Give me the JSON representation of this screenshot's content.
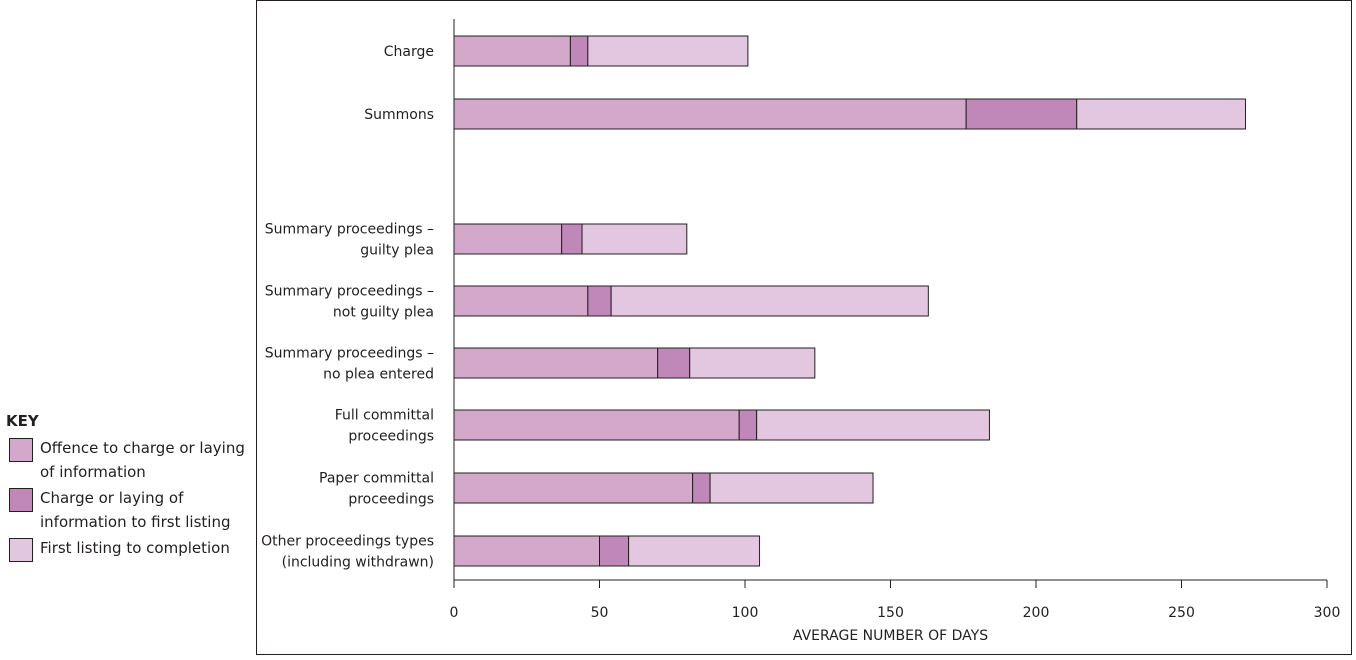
{
  "key": {
    "title": "KEY",
    "items": [
      {
        "label": "Offence to charge or laying of information",
        "color": "#d3a8cb"
      },
      {
        "label": "Charge or laying of information to first listing",
        "color": "#c088b8"
      },
      {
        "label": "First listing to completion",
        "color": "#e3c6df"
      }
    ]
  },
  "chart_data": {
    "type": "bar",
    "orientation": "horizontal",
    "stacked": true,
    "categories": [
      [
        "Charge"
      ],
      [
        "Summons"
      ],
      [
        "Summary proceedings –",
        "guilty plea"
      ],
      [
        "Summary proceedings –",
        "not guilty plea"
      ],
      [
        "Summary proceedings –",
        "no plea entered"
      ],
      [
        "Full committal",
        "proceedings"
      ],
      [
        "Paper committal",
        "proceedings"
      ],
      [
        "Other proceedings types",
        "(including withdrawn)"
      ]
    ],
    "series": [
      {
        "name": "Offence to charge or laying of information",
        "values": [
          40,
          176,
          37,
          46,
          70,
          98,
          82,
          50
        ]
      },
      {
        "name": "Charge or laying of information to first listing",
        "values": [
          6,
          38,
          7,
          8,
          11,
          6,
          6,
          10
        ]
      },
      {
        "name": "First listing to completion",
        "values": [
          55,
          58,
          36,
          109,
          43,
          80,
          56,
          45
        ]
      }
    ],
    "colors": [
      "#d3a8cb",
      "#c088b8",
      "#e3c6df"
    ],
    "xlabel": "AVERAGE NUMBER OF DAYS",
    "xticks": [
      0,
      50,
      100,
      150,
      200,
      250,
      300
    ],
    "xlim": [
      0,
      300
    ],
    "grid": false,
    "legend": "left"
  }
}
